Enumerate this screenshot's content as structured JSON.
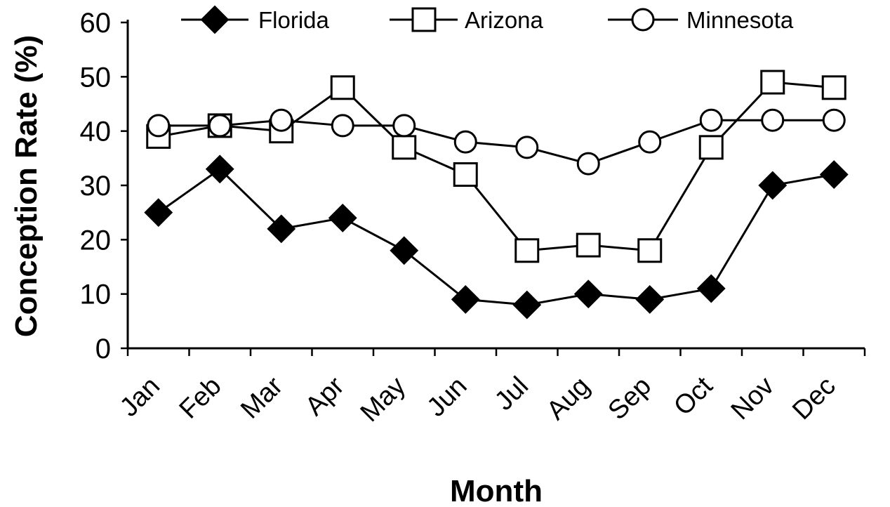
{
  "chart_data": {
    "type": "line",
    "categories": [
      "Jan",
      "Feb",
      "Mar",
      "Apr",
      "May",
      "Jun",
      "Jul",
      "Aug",
      "Sep",
      "Oct",
      "Nov",
      "Dec"
    ],
    "series": [
      {
        "name": "Florida",
        "marker": "diamond-filled",
        "color": "#000000",
        "values": [
          25,
          33,
          22,
          24,
          18,
          9,
          8,
          10,
          9,
          11,
          30,
          32
        ]
      },
      {
        "name": "Arizona",
        "marker": "square-open",
        "color": "#000000",
        "values": [
          39,
          41,
          40,
          48,
          37,
          32,
          18,
          19,
          18,
          37,
          49,
          48
        ]
      },
      {
        "name": "Minnesota",
        "marker": "circle-open",
        "color": "#000000",
        "values": [
          41,
          41,
          42,
          41,
          41,
          38,
          37,
          34,
          38,
          42,
          42,
          42
        ]
      }
    ],
    "xlabel": "Month",
    "ylabel": "Conception Rate (%)",
    "ylim": [
      0,
      60
    ],
    "yticks": [
      0,
      10,
      20,
      30,
      40,
      50,
      60
    ],
    "grid": false,
    "legend_position": "top"
  }
}
